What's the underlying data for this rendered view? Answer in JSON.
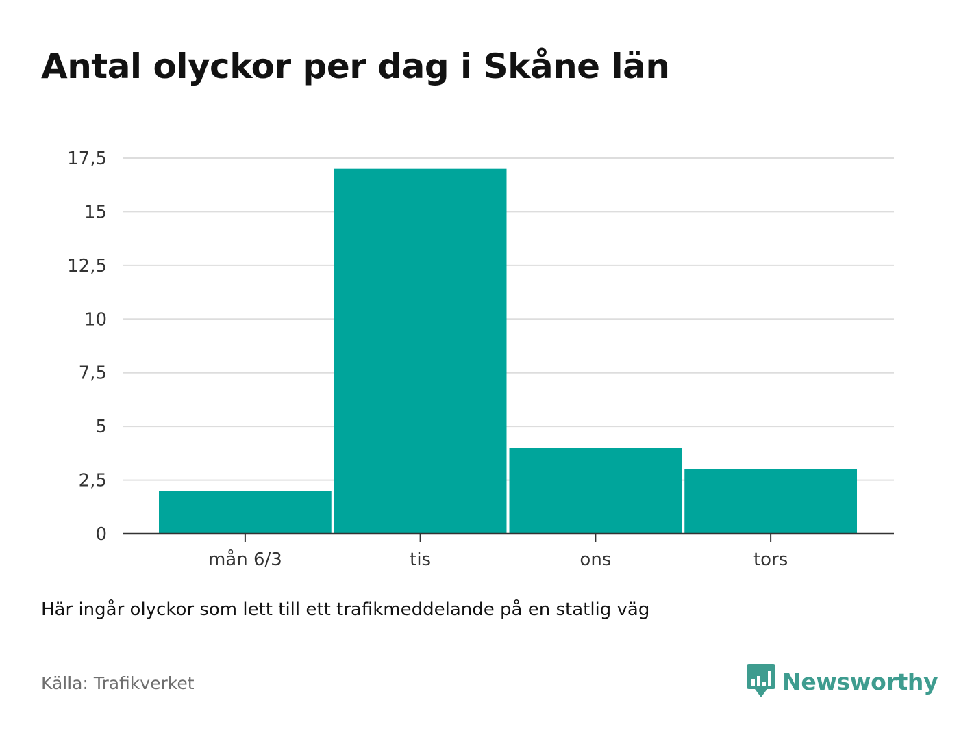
{
  "title": "Antal olyckor per dag i Skåne län",
  "note": "Här ingår olyckor som lett till ett trafikmeddelande på en statlig väg",
  "source": "Källa: Trafikverket",
  "brand": {
    "name": "Newsworthy",
    "color": "#3e9c8f"
  },
  "colors": {
    "bar": "#00a59b",
    "grid": "#dddddd",
    "axis": "#333333"
  },
  "chart_data": {
    "type": "bar",
    "categories": [
      "mån 6/3",
      "tis",
      "ons",
      "tors"
    ],
    "values": [
      2,
      17,
      4,
      3
    ],
    "y_ticks": [
      0,
      2.5,
      5,
      7.5,
      10,
      12.5,
      15,
      17.5
    ],
    "y_tick_labels": [
      "0",
      "2,5",
      "5",
      "7,5",
      "10",
      "12,5",
      "15",
      "17,5"
    ],
    "ylim": [
      0,
      17.5
    ],
    "grid": true
  }
}
